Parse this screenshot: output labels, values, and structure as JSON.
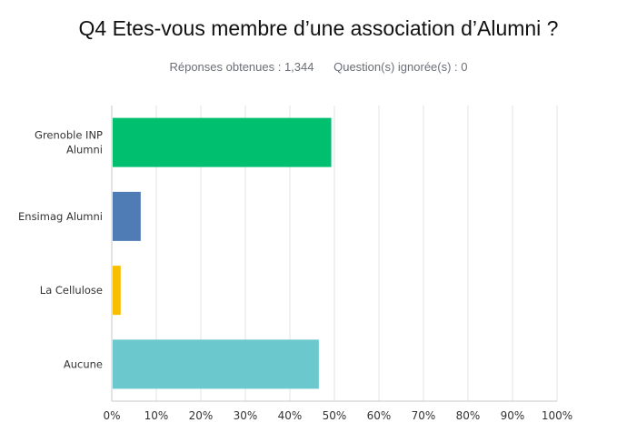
{
  "header": {
    "title": "Q4 Etes-vous membre d’une association d’Alumni ?",
    "responses": "Réponses obtenues : 1,344",
    "skipped": "Question(s) ignorée(s) : 0"
  },
  "chart_data": {
    "type": "bar",
    "orientation": "horizontal",
    "categories": [
      [
        "Grenoble INP",
        "Alumni"
      ],
      [
        "Ensimag Alumni"
      ],
      [
        "La Cellulose"
      ],
      [
        "Aucune"
      ]
    ],
    "values": [
      49.3,
      6.5,
      2.0,
      46.5
    ],
    "colors": [
      "#00bf6f",
      "#507cb6",
      "#f9be00",
      "#6bc8cd"
    ],
    "xlim": [
      0,
      100
    ],
    "xticks": [
      "0%",
      "10%",
      "20%",
      "30%",
      "40%",
      "50%",
      "60%",
      "70%",
      "80%",
      "90%",
      "100%"
    ],
    "grid": true,
    "xlabel": "",
    "ylabel": ""
  }
}
